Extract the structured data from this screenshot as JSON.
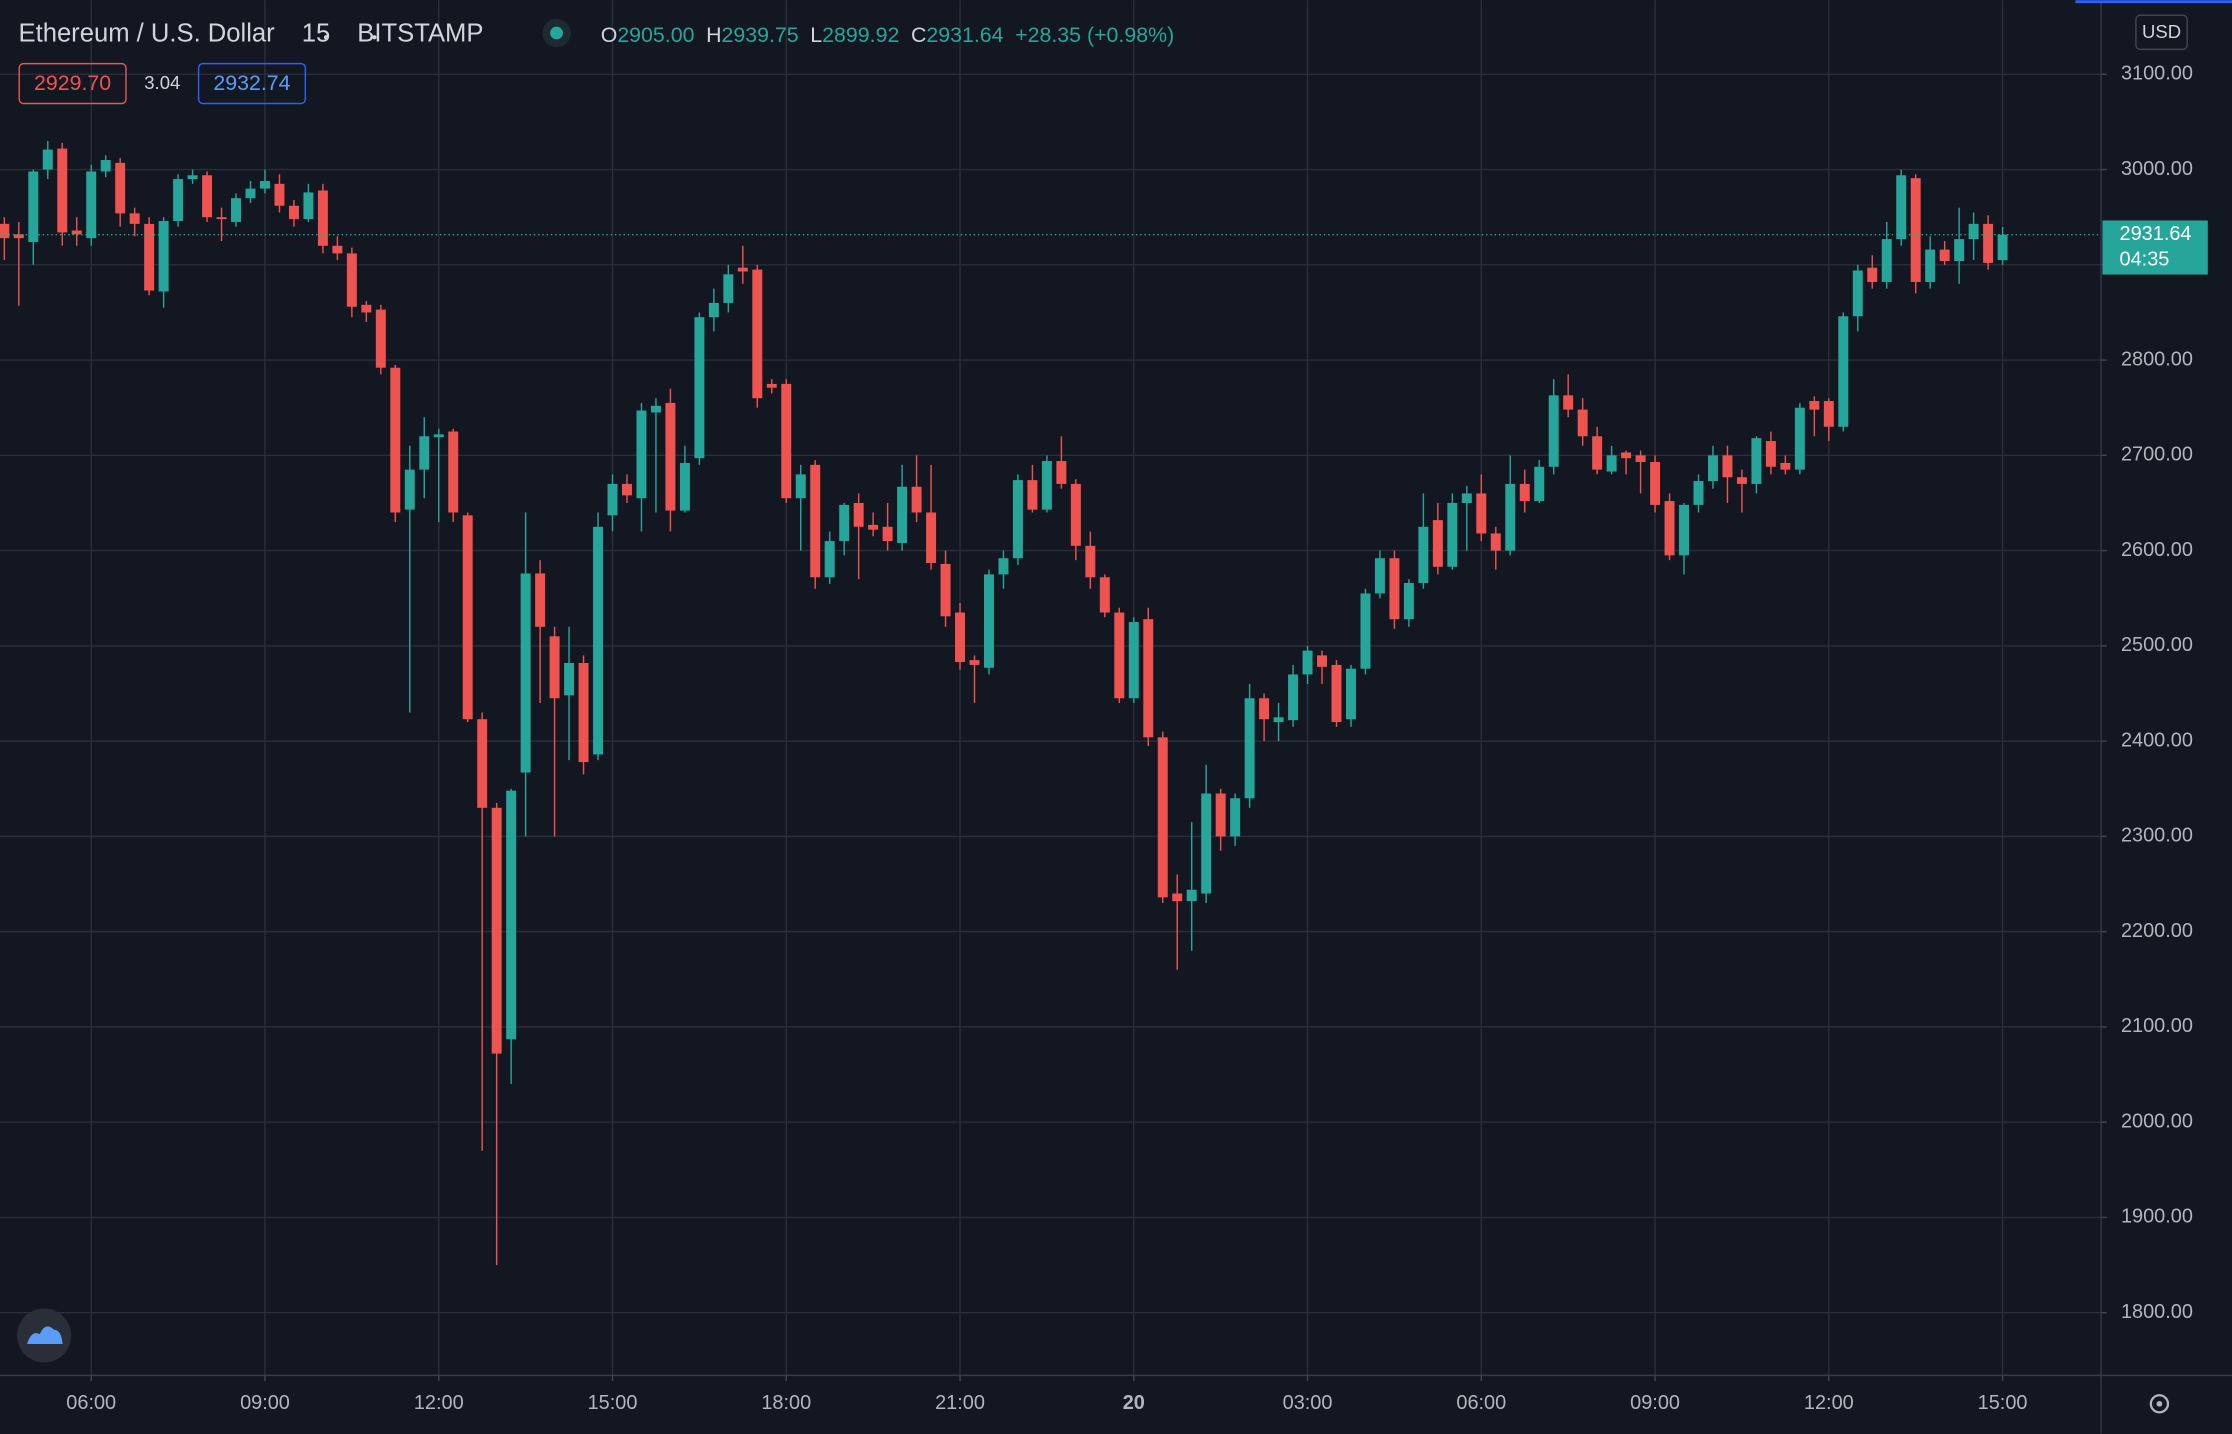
{
  "header": {
    "symbol": "Ethereum / U.S. Dollar",
    "interval": "15",
    "exchange": "BITSTAMP",
    "ohlc": [
      {
        "label": "O",
        "value": "2905.00"
      },
      {
        "label": "H",
        "value": "2939.75"
      },
      {
        "label": "L",
        "value": "2899.92"
      },
      {
        "label": "C",
        "value": "2931.64"
      }
    ],
    "change": "+28.35 (+0.98%)",
    "sell": "2929.70",
    "spread": "3.04",
    "buy": "2932.74",
    "currency": "USD"
  },
  "chart_data": {
    "type": "candlestick",
    "up_color": "#26a69a",
    "down_color": "#ef5350",
    "grid": true,
    "open": [
      2943,
      2932,
      2924,
      3000,
      3022,
      2936,
      2928,
      2998,
      3007,
      2954,
      2943,
      2872,
      2946,
      2990,
      2994,
      2950,
      2945,
      2970,
      2980,
      2985,
      2962,
      2948,
      2978,
      2920,
      2912,
      2858,
      2853,
      2792,
      2643,
      2685,
      2719,
      2725,
      2637,
      2423,
      2330,
      2087,
      2367,
      2576,
      2510,
      2448,
      2482,
      2386,
      2637,
      2670,
      2655,
      2745,
      2755,
      2642,
      2697,
      2845,
      2860,
      2897,
      2895,
      2775,
      2775,
      2655,
      2690,
      2572,
      2610,
      2650,
      2627,
      2625,
      2608,
      2667,
      2640,
      2586,
      2535,
      2485,
      2477,
      2575,
      2592,
      2674,
      2643,
      2694,
      2670,
      2605,
      2572,
      2535,
      2445,
      2528,
      2404,
      2240,
      2232,
      2240,
      2345,
      2300,
      2340,
      2445,
      2420,
      2422,
      2470,
      2490,
      2480,
      2423,
      2476,
      2555,
      2592,
      2528,
      2566,
      2632,
      2583,
      2650,
      2660,
      2618,
      2600,
      2670,
      2652,
      2688,
      2763,
      2748,
      2720,
      2683,
      2703,
      2700,
      2693,
      2652,
      2595,
      2648,
      2673,
      2700,
      2677,
      2670,
      2715,
      2692,
      2685,
      2757,
      2757,
      2730,
      2846,
      2897,
      2882,
      2927,
      2991,
      2882,
      2916,
      2904,
      2927,
      2943,
      2905
    ],
    "high": [
      2950,
      2945,
      3000,
      3030,
      3028,
      2950,
      3005,
      3015,
      3012,
      2960,
      2950,
      2950,
      2995,
      3000,
      2998,
      2960,
      2975,
      2988,
      3000,
      2995,
      2968,
      2985,
      2985,
      2930,
      2918,
      2862,
      2858,
      2795,
      2710,
      2740,
      2728,
      2728,
      2640,
      2430,
      2335,
      2350,
      2640,
      2590,
      2520,
      2520,
      2490,
      2640,
      2680,
      2680,
      2755,
      2760,
      2770,
      2710,
      2850,
      2875,
      2900,
      2920,
      2900,
      2780,
      2780,
      2690,
      2695,
      2620,
      2650,
      2660,
      2640,
      2650,
      2690,
      2700,
      2690,
      2600,
      2545,
      2490,
      2580,
      2600,
      2680,
      2690,
      2700,
      2720,
      2675,
      2620,
      2575,
      2540,
      2530,
      2540,
      2410,
      2260,
      2315,
      2375,
      2350,
      2345,
      2460,
      2450,
      2440,
      2480,
      2500,
      2495,
      2485,
      2480,
      2560,
      2600,
      2600,
      2570,
      2660,
      2650,
      2660,
      2668,
      2680,
      2625,
      2700,
      2685,
      2695,
      2780,
      2785,
      2760,
      2730,
      2710,
      2705,
      2705,
      2700,
      2660,
      2650,
      2680,
      2710,
      2710,
      2685,
      2720,
      2725,
      2700,
      2755,
      2762,
      2760,
      2850,
      2900,
      2910,
      2945,
      3000,
      2995,
      2930,
      2925,
      2960,
      2955,
      2952,
      2939.75
    ],
    "low": [
      2905,
      2857,
      2900,
      2990,
      2920,
      2920,
      2920,
      2992,
      2940,
      2930,
      2868,
      2855,
      2940,
      2985,
      2945,
      2925,
      2940,
      2965,
      2975,
      2955,
      2940,
      2945,
      2912,
      2905,
      2845,
      2840,
      2785,
      2630,
      2430,
      2655,
      2630,
      2630,
      2420,
      1970,
      1850,
      2040,
      2300,
      2440,
      2300,
      2380,
      2365,
      2380,
      2620,
      2650,
      2620,
      2640,
      2620,
      2640,
      2690,
      2830,
      2850,
      2880,
      2750,
      2765,
      2650,
      2600,
      2560,
      2565,
      2595,
      2570,
      2615,
      2600,
      2600,
      2630,
      2580,
      2520,
      2475,
      2440,
      2470,
      2560,
      2585,
      2640,
      2640,
      2665,
      2590,
      2560,
      2530,
      2440,
      2440,
      2395,
      2230,
      2160,
      2180,
      2230,
      2285,
      2290,
      2330,
      2400,
      2400,
      2415,
      2460,
      2460,
      2415,
      2415,
      2470,
      2550,
      2518,
      2520,
      2560,
      2575,
      2580,
      2600,
      2610,
      2580,
      2595,
      2640,
      2650,
      2680,
      2740,
      2710,
      2680,
      2680,
      2680,
      2660,
      2640,
      2590,
      2575,
      2640,
      2665,
      2650,
      2640,
      2660,
      2680,
      2680,
      2680,
      2720,
      2715,
      2725,
      2830,
      2875,
      2875,
      2920,
      2870,
      2875,
      2900,
      2880,
      2905,
      2895,
      2899.92
    ],
    "close": [
      2928,
      2928,
      2998,
      3021,
      2934,
      2932,
      2998,
      3010,
      2954,
      2943,
      2873,
      2946,
      2990,
      2994,
      2950,
      2948,
      2970,
      2980,
      2988,
      2962,
      2948,
      2976,
      2920,
      2912,
      2856,
      2850,
      2792,
      2640,
      2685,
      2720,
      2722,
      2640,
      2423,
      2330,
      2072,
      2348,
      2576,
      2520,
      2445,
      2482,
      2378,
      2625,
      2670,
      2658,
      2747,
      2752,
      2642,
      2692,
      2845,
      2860,
      2890,
      2893,
      2760,
      2771,
      2655,
      2680,
      2572,
      2610,
      2648,
      2625,
      2622,
      2610,
      2667,
      2640,
      2587,
      2531,
      2483,
      2480,
      2575,
      2592,
      2674,
      2643,
      2694,
      2670,
      2605,
      2572,
      2535,
      2445,
      2525,
      2404,
      2236,
      2232,
      2244,
      2345,
      2300,
      2340,
      2445,
      2423,
      2425,
      2470,
      2495,
      2478,
      2420,
      2476,
      2555,
      2592,
      2528,
      2566,
      2625,
      2583,
      2650,
      2660,
      2618,
      2600,
      2670,
      2652,
      2688,
      2763,
      2748,
      2720,
      2685,
      2700,
      2697,
      2693,
      2648,
      2595,
      2648,
      2673,
      2700,
      2677,
      2670,
      2718,
      2688,
      2685,
      2750,
      2748,
      2730,
      2846,
      2894,
      2882,
      2927,
      2994,
      2882,
      2916,
      2904,
      2927,
      2943,
      2902,
      2931.64
    ],
    "xlim": [
      -0.3,
      144.8
    ],
    "xticks": [
      {
        "value": 6,
        "label": "06:00"
      },
      {
        "value": 18,
        "label": "09:00"
      },
      {
        "value": 30,
        "label": "12:00"
      },
      {
        "value": 42,
        "label": "15:00"
      },
      {
        "value": 54,
        "label": "18:00"
      },
      {
        "value": 66,
        "label": "21:00"
      },
      {
        "value": 78,
        "label": "20"
      },
      {
        "value": 90,
        "label": "03:00"
      },
      {
        "value": 102,
        "label": "06:00"
      },
      {
        "value": 114,
        "label": "09:00"
      },
      {
        "value": 126,
        "label": "12:00"
      },
      {
        "value": 138,
        "label": "15:00"
      }
    ],
    "ylim": [
      1734.2,
      3177.7
    ],
    "yticks": [
      {
        "value": 3100,
        "label": "3100.00"
      },
      {
        "value": 3000,
        "label": "3000.00"
      },
      {
        "value": 2900,
        "label": "2900.00"
      },
      {
        "value": 2800,
        "label": "2800.00"
      },
      {
        "value": 2700,
        "label": "2700.00"
      },
      {
        "value": 2600,
        "label": "2600.00"
      },
      {
        "value": 2500,
        "label": "2500.00"
      },
      {
        "value": 2400,
        "label": "2400.00"
      },
      {
        "value": 2300,
        "label": "2300.00"
      },
      {
        "value": 2200,
        "label": "2200.00"
      },
      {
        "value": 2100,
        "label": "2100.00"
      },
      {
        "value": 2000,
        "label": "2000.00"
      },
      {
        "value": 1900,
        "label": "1900.00"
      },
      {
        "value": 1800,
        "label": "1800.00"
      }
    ],
    "last_price": {
      "value": 2931.64,
      "label": "2931.64"
    },
    "countdown": "04:35"
  }
}
